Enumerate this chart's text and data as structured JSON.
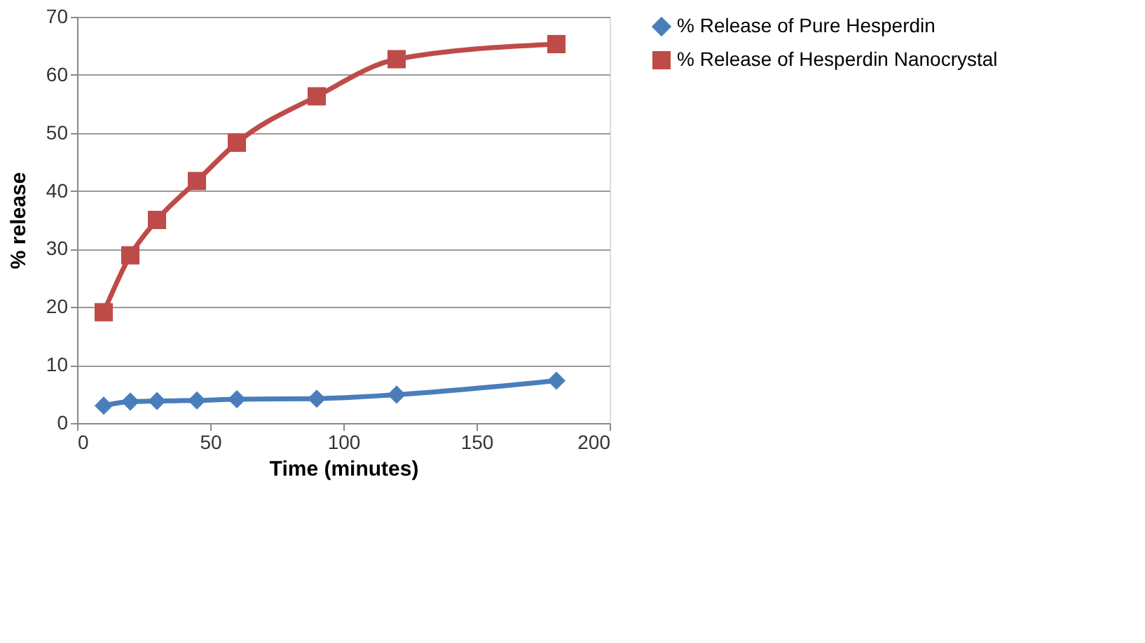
{
  "chart_data": {
    "type": "line",
    "xlabel": "Time (minutes)",
    "ylabel": "% release",
    "x": [
      10,
      20,
      30,
      45,
      60,
      90,
      120,
      180
    ],
    "series": [
      {
        "name": "% Release of Pure Hesperdin",
        "color": "#4a7ebb",
        "marker": "diamond",
        "values": [
          3.0,
          3.7,
          3.8,
          3.9,
          4.1,
          4.2,
          4.9,
          7.3
        ]
      },
      {
        "name": "% Release of Hesperdin Nanocrystal",
        "color": "#be4b48",
        "marker": "square",
        "values": [
          19.1,
          28.9,
          35.0,
          41.7,
          48.3,
          56.3,
          62.7,
          65.3
        ]
      }
    ],
    "xlim": [
      0,
      200
    ],
    "xticks": [
      0,
      50,
      100,
      150,
      200
    ],
    "ylim": [
      0,
      70
    ],
    "yticks": [
      0,
      10,
      20,
      30,
      40,
      50,
      60,
      70
    ],
    "grid": "y",
    "legend": "right",
    "line_style": "solid"
  }
}
